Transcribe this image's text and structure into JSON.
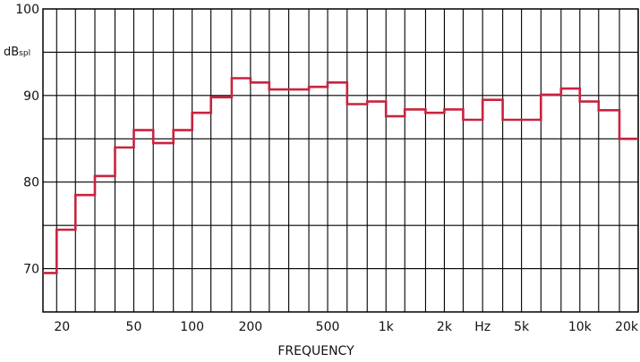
{
  "chart_data": {
    "type": "line",
    "step": true,
    "title": "",
    "xlabel": "FREQUENCY",
    "ylabel": "dB",
    "ylabel_sub": "spl",
    "x_scale": "log",
    "xlim": [
      17,
      20000
    ],
    "ylim": [
      65,
      100
    ],
    "grid": true,
    "x_gridlines": [
      20,
      25,
      31.5,
      40,
      50,
      63,
      80,
      100,
      125,
      160,
      200,
      250,
      315,
      400,
      500,
      630,
      800,
      1000,
      1250,
      1600,
      2000,
      2500,
      3150,
      4000,
      5000,
      6300,
      8000,
      10000,
      12500,
      16000,
      20000
    ],
    "y_gridlines": [
      65,
      70,
      75,
      80,
      85,
      90,
      95,
      100
    ],
    "x_tick_labels": [
      {
        "value": 20,
        "label": "20"
      },
      {
        "value": 50,
        "label": "50"
      },
      {
        "value": 100,
        "label": "100"
      },
      {
        "value": 200,
        "label": "200"
      },
      {
        "value": 500,
        "label": "500"
      },
      {
        "value": 1000,
        "label": "1k"
      },
      {
        "value": 2000,
        "label": "2k"
      },
      {
        "value": 3150,
        "label": "Hz"
      },
      {
        "value": 5000,
        "label": "5k"
      },
      {
        "value": 10000,
        "label": "10k"
      },
      {
        "value": 20000,
        "label": "20k"
      }
    ],
    "y_tick_labels": [
      {
        "value": 70,
        "label": "70"
      },
      {
        "value": 80,
        "label": "80"
      },
      {
        "value": 90,
        "label": "90"
      },
      {
        "value": 100,
        "label": "100"
      }
    ],
    "series": [
      {
        "color": "#c8233f",
        "bands": [
          {
            "x_start": 17,
            "x_end": 20,
            "y": 69.5
          },
          {
            "x_start": 20,
            "x_end": 25,
            "y": 74.5
          },
          {
            "x_start": 25,
            "x_end": 31.5,
            "y": 78.5
          },
          {
            "x_start": 31.5,
            "x_end": 40,
            "y": 80.7
          },
          {
            "x_start": 40,
            "x_end": 50,
            "y": 84
          },
          {
            "x_start": 50,
            "x_end": 63,
            "y": 86
          },
          {
            "x_start": 63,
            "x_end": 80,
            "y": 84.5
          },
          {
            "x_start": 80,
            "x_end": 100,
            "y": 86
          },
          {
            "x_start": 100,
            "x_end": 125,
            "y": 88
          },
          {
            "x_start": 125,
            "x_end": 160,
            "y": 89.8
          },
          {
            "x_start": 160,
            "x_end": 200,
            "y": 92
          },
          {
            "x_start": 200,
            "x_end": 250,
            "y": 91.5
          },
          {
            "x_start": 250,
            "x_end": 400,
            "y": 90.7
          },
          {
            "x_start": 400,
            "x_end": 500,
            "y": 91
          },
          {
            "x_start": 500,
            "x_end": 630,
            "y": 91.5
          },
          {
            "x_start": 630,
            "x_end": 800,
            "y": 89
          },
          {
            "x_start": 800,
            "x_end": 1000,
            "y": 89.3
          },
          {
            "x_start": 1000,
            "x_end": 1250,
            "y": 87.6
          },
          {
            "x_start": 1250,
            "x_end": 1600,
            "y": 88.4
          },
          {
            "x_start": 1600,
            "x_end": 2000,
            "y": 88
          },
          {
            "x_start": 2000,
            "x_end": 2500,
            "y": 88.4
          },
          {
            "x_start": 2500,
            "x_end": 3150,
            "y": 87.2
          },
          {
            "x_start": 3150,
            "x_end": 4000,
            "y": 89.5
          },
          {
            "x_start": 4000,
            "x_end": 6300,
            "y": 87.2
          },
          {
            "x_start": 6300,
            "x_end": 8000,
            "y": 90.1
          },
          {
            "x_start": 8000,
            "x_end": 10000,
            "y": 90.8
          },
          {
            "x_start": 10000,
            "x_end": 12500,
            "y": 89.3
          },
          {
            "x_start": 12500,
            "x_end": 16000,
            "y": 88.3
          },
          {
            "x_start": 16000,
            "x_end": 20000,
            "y": 85
          }
        ]
      }
    ]
  }
}
